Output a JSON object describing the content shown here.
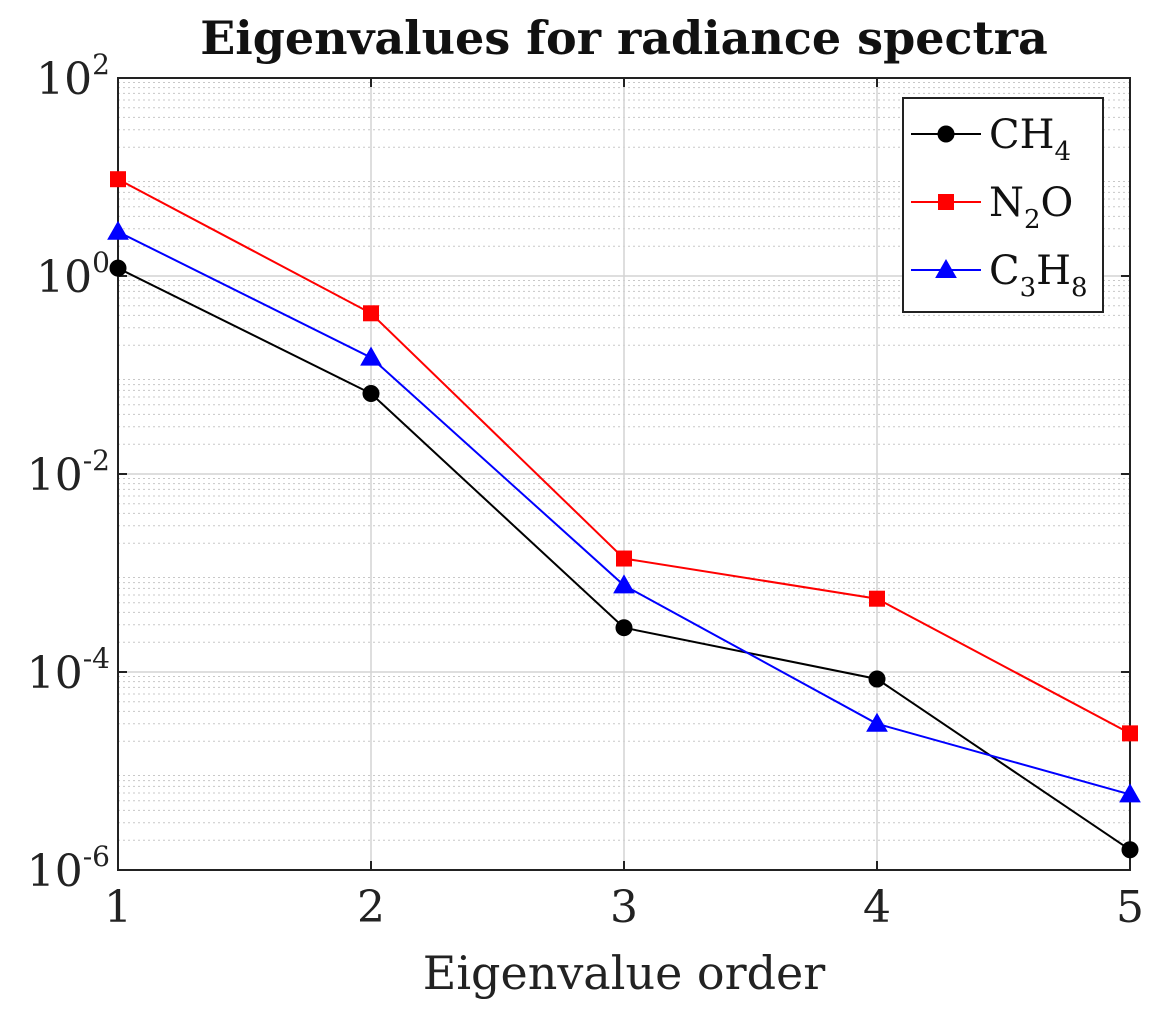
{
  "chart_data": {
    "type": "line",
    "title": "Eigenvalues for radiance spectra",
    "xlabel": "Eigenvalue order",
    "ylabel": "",
    "xscale": "linear",
    "yscale": "log",
    "x": [
      1,
      2,
      3,
      4,
      5
    ],
    "xlim": [
      1,
      5
    ],
    "ylim": [
      1e-06,
      100
    ],
    "xticks": [
      1,
      2,
      3,
      4,
      5
    ],
    "xtick_labels": [
      "1",
      "2",
      "3",
      "4",
      "5"
    ],
    "yticks": [
      {
        "value": 1e-06,
        "base": "10",
        "exp": "-6"
      },
      {
        "value": 0.0001,
        "base": "10",
        "exp": "-4"
      },
      {
        "value": 0.01,
        "base": "10",
        "exp": "-2"
      },
      {
        "value": 1,
        "base": "10",
        "exp": "0"
      },
      {
        "value": 100,
        "base": "10",
        "exp": "2"
      }
    ],
    "grid": true,
    "minor_grid": true,
    "legend_position": "top-right",
    "series": [
      {
        "name": "CH4",
        "label_main": "CH",
        "label_sub": "4",
        "label_after": "",
        "color": "#000000",
        "marker": "circle",
        "values": [
          1.2,
          0.065,
          0.00028,
          8.5e-05,
          1.6e-06
        ]
      },
      {
        "name": "N2O",
        "label_main": "N",
        "label_sub": "2",
        "label_after": "O",
        "color": "#ff0000",
        "marker": "square",
        "values": [
          9.5,
          0.42,
          0.0014,
          0.00055,
          2.4e-05
        ]
      },
      {
        "name": "C3H8",
        "label_main": "C",
        "label_sub": "3",
        "label_after": "H",
        "label_sub2": "8",
        "color": "#0000ff",
        "marker": "triangle",
        "values": [
          2.8,
          0.15,
          0.00075,
          3e-05,
          5.8e-06
        ]
      }
    ]
  }
}
